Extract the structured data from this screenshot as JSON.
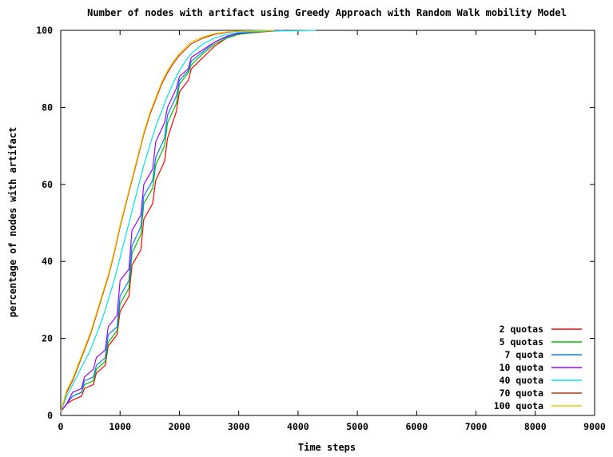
{
  "chart_data": {
    "type": "line",
    "title": "Number of nodes with artifact using Greedy Approach with Random Walk mobility Model",
    "xlabel": "Time steps",
    "ylabel": "percentage of nodes with artifact",
    "xlim": [
      0,
      9000
    ],
    "ylim": [
      0,
      100
    ],
    "x_ticks": [
      "0",
      "1000",
      "2000",
      "3000",
      "4000",
      "5000",
      "6000",
      "7000",
      "8000",
      "9000"
    ],
    "y_ticks": [
      "0",
      "20",
      "40",
      "60",
      "80",
      "100"
    ],
    "grid": false,
    "legend_position": "bottom-right",
    "series": [
      {
        "name": "2 quotas",
        "color": "#ff0000",
        "points": [
          [
            0,
            1
          ],
          [
            100,
            3
          ],
          [
            200,
            4
          ],
          [
            350,
            5
          ],
          [
            400,
            7
          ],
          [
            550,
            8
          ],
          [
            600,
            11
          ],
          [
            750,
            13
          ],
          [
            800,
            18
          ],
          [
            950,
            21
          ],
          [
            1000,
            27
          ],
          [
            1150,
            31
          ],
          [
            1200,
            39
          ],
          [
            1350,
            43
          ],
          [
            1400,
            51
          ],
          [
            1550,
            55
          ],
          [
            1600,
            61
          ],
          [
            1750,
            66
          ],
          [
            1800,
            72
          ],
          [
            1950,
            79
          ],
          [
            2000,
            84
          ],
          [
            2150,
            87
          ],
          [
            2200,
            90
          ],
          [
            2400,
            93
          ],
          [
            2600,
            96
          ],
          [
            2800,
            98
          ],
          [
            3000,
            99
          ],
          [
            3400,
            99.6
          ],
          [
            3800,
            100
          ]
        ]
      },
      {
        "name": "5 quotas",
        "color": "#00c000",
        "points": [
          [
            0,
            1
          ],
          [
            100,
            3
          ],
          [
            200,
            5
          ],
          [
            350,
            6
          ],
          [
            400,
            8
          ],
          [
            550,
            9
          ],
          [
            600,
            12
          ],
          [
            750,
            14
          ],
          [
            800,
            19
          ],
          [
            950,
            22
          ],
          [
            1000,
            29
          ],
          [
            1150,
            33
          ],
          [
            1200,
            42
          ],
          [
            1350,
            47
          ],
          [
            1400,
            55
          ],
          [
            1550,
            59
          ],
          [
            1600,
            65
          ],
          [
            1750,
            70
          ],
          [
            1800,
            76
          ],
          [
            1950,
            81
          ],
          [
            2000,
            86
          ],
          [
            2150,
            89
          ],
          [
            2200,
            91
          ],
          [
            2400,
            94
          ],
          [
            2600,
            96.5
          ],
          [
            2800,
            98
          ],
          [
            3000,
            99
          ],
          [
            3400,
            99.7
          ],
          [
            3800,
            100
          ]
        ]
      },
      {
        "name": "7 quota",
        "color": "#0080ff",
        "points": [
          [
            0,
            1
          ],
          [
            100,
            3
          ],
          [
            200,
            5
          ],
          [
            350,
            6
          ],
          [
            400,
            9
          ],
          [
            550,
            10
          ],
          [
            600,
            13
          ],
          [
            750,
            15
          ],
          [
            800,
            21
          ],
          [
            950,
            23
          ],
          [
            1000,
            31
          ],
          [
            1150,
            35
          ],
          [
            1200,
            44
          ],
          [
            1350,
            49
          ],
          [
            1400,
            57
          ],
          [
            1550,
            61
          ],
          [
            1600,
            67
          ],
          [
            1750,
            72
          ],
          [
            1800,
            78
          ],
          [
            1950,
            83
          ],
          [
            2000,
            87
          ],
          [
            2150,
            89.5
          ],
          [
            2200,
            92
          ],
          [
            2400,
            94.5
          ],
          [
            2600,
            97
          ],
          [
            2800,
            98.3
          ],
          [
            3000,
            99.2
          ],
          [
            3400,
            99.8
          ],
          [
            3800,
            100
          ]
        ]
      },
      {
        "name": "10 quota",
        "color": "#a000ff",
        "points": [
          [
            0,
            1
          ],
          [
            100,
            3
          ],
          [
            200,
            6
          ],
          [
            350,
            7
          ],
          [
            400,
            10
          ],
          [
            550,
            12
          ],
          [
            600,
            15
          ],
          [
            750,
            17
          ],
          [
            800,
            23
          ],
          [
            950,
            26
          ],
          [
            1000,
            35
          ],
          [
            1150,
            38
          ],
          [
            1200,
            48
          ],
          [
            1350,
            52
          ],
          [
            1400,
            60
          ],
          [
            1550,
            64
          ],
          [
            1600,
            71
          ],
          [
            1750,
            76
          ],
          [
            1800,
            80
          ],
          [
            1950,
            85
          ],
          [
            2000,
            88
          ],
          [
            2150,
            90
          ],
          [
            2200,
            93
          ],
          [
            2400,
            95
          ],
          [
            2600,
            97
          ],
          [
            2800,
            98.5
          ],
          [
            3000,
            99.3
          ],
          [
            3400,
            99.8
          ],
          [
            3800,
            100
          ]
        ]
      },
      {
        "name": "40 quota",
        "color": "#00e5e5",
        "points": [
          [
            0,
            1
          ],
          [
            100,
            5
          ],
          [
            200,
            8
          ],
          [
            300,
            11
          ],
          [
            400,
            14
          ],
          [
            500,
            17
          ],
          [
            600,
            21
          ],
          [
            700,
            25
          ],
          [
            800,
            30
          ],
          [
            900,
            35
          ],
          [
            1000,
            41
          ],
          [
            1100,
            47
          ],
          [
            1200,
            53
          ],
          [
            1300,
            59
          ],
          [
            1400,
            65
          ],
          [
            1500,
            70
          ],
          [
            1600,
            75
          ],
          [
            1700,
            79
          ],
          [
            1800,
            83
          ],
          [
            1900,
            86.5
          ],
          [
            2000,
            89.5
          ],
          [
            2100,
            92
          ],
          [
            2200,
            94
          ],
          [
            2400,
            96.5
          ],
          [
            2600,
            98
          ],
          [
            2800,
            99
          ],
          [
            3000,
            99.5
          ],
          [
            3500,
            99.8
          ],
          [
            4300,
            100
          ]
        ]
      },
      {
        "name": "70 quota",
        "color": "#cc3300",
        "points": [
          [
            0,
            1
          ],
          [
            100,
            6
          ],
          [
            200,
            9
          ],
          [
            300,
            13
          ],
          [
            400,
            17
          ],
          [
            500,
            21
          ],
          [
            600,
            26
          ],
          [
            700,
            31
          ],
          [
            800,
            36
          ],
          [
            900,
            42
          ],
          [
            1000,
            49
          ],
          [
            1100,
            55
          ],
          [
            1200,
            61
          ],
          [
            1300,
            67
          ],
          [
            1400,
            73
          ],
          [
            1500,
            78
          ],
          [
            1600,
            82
          ],
          [
            1700,
            86
          ],
          [
            1800,
            89
          ],
          [
            1900,
            91.5
          ],
          [
            2000,
            93.5
          ],
          [
            2100,
            95
          ],
          [
            2200,
            96.5
          ],
          [
            2400,
            98
          ],
          [
            2600,
            99
          ],
          [
            2800,
            99.5
          ],
          [
            3000,
            99.8
          ],
          [
            3600,
            100
          ]
        ]
      },
      {
        "name": "100 quota",
        "color": "#f0c800",
        "points": [
          [
            0,
            1
          ],
          [
            100,
            6.5
          ],
          [
            200,
            9.5
          ],
          [
            300,
            13.5
          ],
          [
            400,
            17.5
          ],
          [
            500,
            21.5
          ],
          [
            600,
            26.5
          ],
          [
            700,
            31.5
          ],
          [
            800,
            36.5
          ],
          [
            900,
            42.5
          ],
          [
            1000,
            49.5
          ],
          [
            1100,
            55.5
          ],
          [
            1200,
            61.5
          ],
          [
            1300,
            67.5
          ],
          [
            1400,
            73.5
          ],
          [
            1500,
            78.5
          ],
          [
            1600,
            82.5
          ],
          [
            1700,
            86.5
          ],
          [
            1800,
            89.5
          ],
          [
            1900,
            92
          ],
          [
            2000,
            94
          ],
          [
            2100,
            95.5
          ],
          [
            2200,
            97
          ],
          [
            2400,
            98.3
          ],
          [
            2600,
            99.2
          ],
          [
            2800,
            99.6
          ],
          [
            3000,
            99.8
          ],
          [
            3600,
            100
          ]
        ]
      }
    ]
  }
}
